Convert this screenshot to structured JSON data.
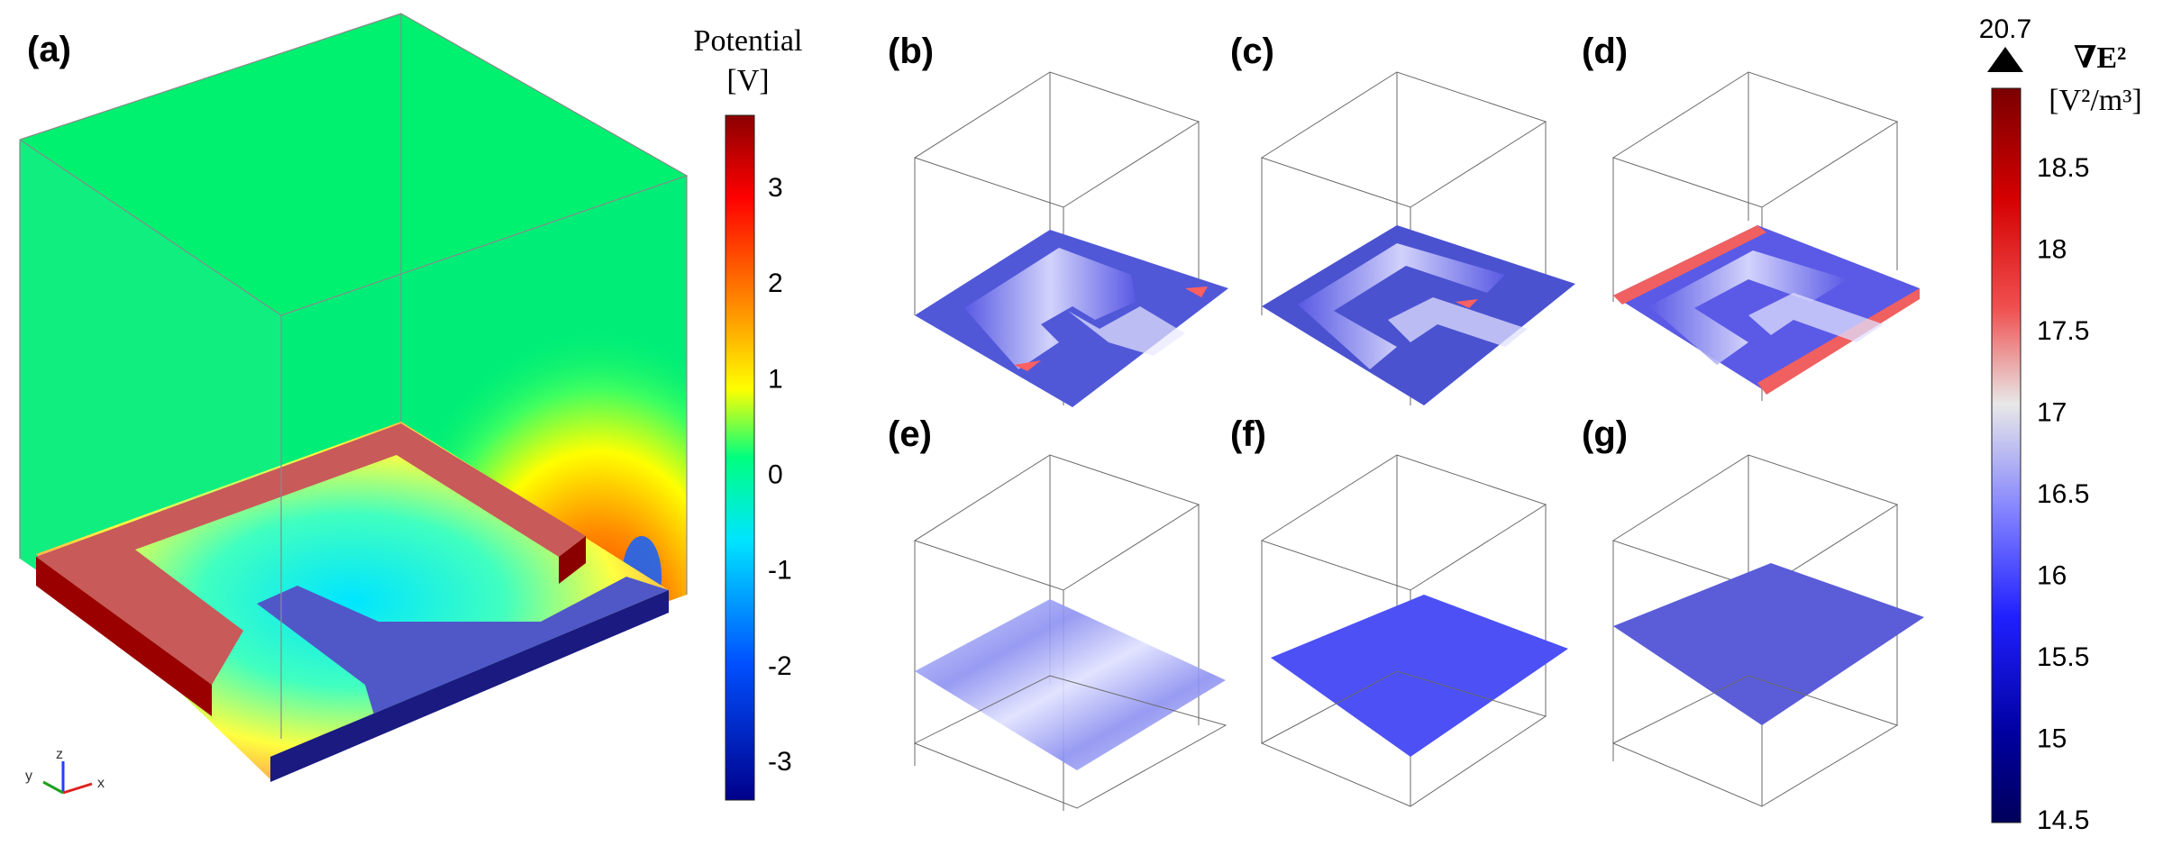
{
  "panels": {
    "a": "(a)",
    "b": "(b)",
    "c": "(c)",
    "d": "(d)",
    "e": "(e)",
    "f": "(f)",
    "g": "(g)"
  },
  "potential_colorbar": {
    "title_line1": "Potential",
    "title_line2": "[V]",
    "ticks": [
      "3",
      "2",
      "1",
      "0",
      "-1",
      "-2",
      "-3"
    ],
    "colors": [
      "#8b0000",
      "#ff0000",
      "#ffa000",
      "#ffff00",
      "#00ff80",
      "#00e5ff",
      "#0050ff",
      "#00008b"
    ]
  },
  "grad_colorbar": {
    "max_label": "20.7",
    "title_line1": "∇E²",
    "title_line2": "[V²/m³]",
    "ticks": [
      "18.5",
      "18",
      "17.5",
      "17",
      "16.5",
      "16",
      "15.5",
      "15",
      "14.5"
    ],
    "colors": [
      "#7a0000",
      "#d40000",
      "#f05050",
      "#e8e8e8",
      "#8080ff",
      "#2020ff",
      "#0000a0",
      "#00005a"
    ]
  },
  "axes_triad": {
    "x": "x",
    "y": "y",
    "z": "z"
  }
}
